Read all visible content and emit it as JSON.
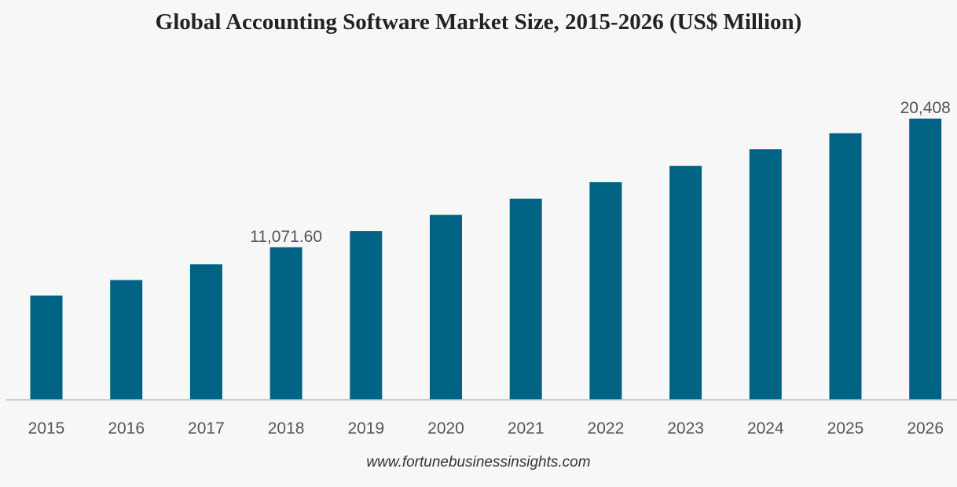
{
  "chart_data": {
    "type": "bar",
    "title": "Global Accounting Software Market Size, 2015-2026 (US$ Million)",
    "xlabel": "",
    "ylabel": "",
    "categories": [
      "2015",
      "2016",
      "2017",
      "2018",
      "2019",
      "2020",
      "2021",
      "2022",
      "2023",
      "2024",
      "2025",
      "2026"
    ],
    "values": [
      7560,
      8690,
      9840,
      11071.6,
      12250,
      13420,
      14600,
      15790,
      16980,
      18180,
      19350,
      20408
    ],
    "data_labels": [
      {
        "index": 3,
        "text": "11,071.60"
      },
      {
        "index": 11,
        "text": "20,408"
      }
    ],
    "ylim": [
      0,
      20408
    ],
    "grid": false,
    "legend": "none",
    "colors": {
      "bar": "#006383",
      "axis": "#bdbdbd",
      "background": "#f7f7f7",
      "label": "#555555"
    }
  },
  "source": "www.fortunebusinessinsights.com"
}
